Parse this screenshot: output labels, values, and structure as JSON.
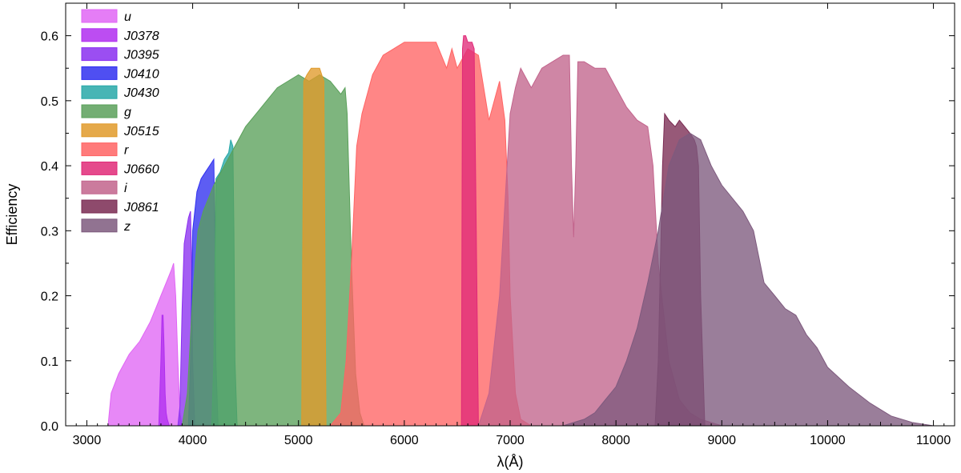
{
  "chart_data": {
    "type": "area",
    "title": "",
    "xlabel": "λ(Å)",
    "ylabel": "Efficiency",
    "xlim": [
      2800,
      11200
    ],
    "ylim": [
      0,
      0.65
    ],
    "xticks": [
      3000,
      4000,
      5000,
      6000,
      7000,
      8000,
      9000,
      10000,
      11000
    ],
    "xtick_labels": [
      "3000",
      "4000",
      "5000",
      "6000",
      "7000",
      "8000",
      "9000",
      "10000",
      "11000"
    ],
    "yticks": [
      0.0,
      0.1,
      0.2,
      0.3,
      0.4,
      0.5,
      0.6
    ],
    "ytick_labels": [
      "0.0",
      "0.1",
      "0.2",
      "0.3",
      "0.4",
      "0.5",
      "0.6"
    ],
    "grid": false,
    "legend_position": "top-left",
    "series": [
      {
        "name": "u",
        "color": "#e066f5",
        "x": [
          3200,
          3230,
          3300,
          3400,
          3500,
          3600,
          3650,
          3700,
          3750,
          3800,
          3820,
          3840,
          3860,
          3880,
          3900
        ],
        "y": [
          0.0,
          0.05,
          0.08,
          0.11,
          0.13,
          0.16,
          0.18,
          0.2,
          0.22,
          0.24,
          0.25,
          0.2,
          0.1,
          0.02,
          0.0
        ]
      },
      {
        "name": "J0378",
        "color": "#b02ef0",
        "x": [
          3680,
          3700,
          3710,
          3720,
          3730,
          3740,
          3750,
          3760,
          3780,
          3800
        ],
        "y": [
          0.0,
          0.1,
          0.17,
          0.17,
          0.12,
          0.05,
          0.02,
          0.01,
          0.0,
          0.0
        ]
      },
      {
        "name": "J0395",
        "color": "#8a2ff0",
        "x": [
          3860,
          3880,
          3900,
          3920,
          3940,
          3960,
          3980,
          3990,
          4000,
          4020
        ],
        "y": [
          0.0,
          0.03,
          0.18,
          0.28,
          0.3,
          0.32,
          0.33,
          0.25,
          0.1,
          0.0
        ]
      },
      {
        "name": "J0410",
        "color": "#3030f0",
        "x": [
          3960,
          3980,
          4000,
          4040,
          4080,
          4120,
          4160,
          4200,
          4210,
          4220,
          4240
        ],
        "y": [
          0.0,
          0.1,
          0.3,
          0.36,
          0.38,
          0.39,
          0.4,
          0.41,
          0.3,
          0.1,
          0.0
        ]
      },
      {
        "name": "J0430",
        "color": "#27a8a8",
        "x": [
          4180,
          4200,
          4220,
          4260,
          4300,
          4340,
          4360,
          4380,
          4390,
          4400,
          4420
        ],
        "y": [
          0.0,
          0.1,
          0.38,
          0.39,
          0.41,
          0.42,
          0.44,
          0.43,
          0.3,
          0.1,
          0.0
        ]
      },
      {
        "name": "g",
        "color": "#5aa05a",
        "x": [
          3900,
          3950,
          4000,
          4050,
          4100,
          4200,
          4300,
          4400,
          4500,
          4600,
          4700,
          4800,
          4900,
          5000,
          5100,
          5200,
          5300,
          5400,
          5440,
          5460,
          5500,
          5540,
          5580,
          5620
        ],
        "y": [
          0.0,
          0.05,
          0.2,
          0.3,
          0.33,
          0.37,
          0.4,
          0.43,
          0.46,
          0.48,
          0.5,
          0.52,
          0.53,
          0.54,
          0.53,
          0.54,
          0.53,
          0.51,
          0.52,
          0.48,
          0.25,
          0.08,
          0.02,
          0.0
        ]
      },
      {
        "name": "J0515",
        "color": "#e09a2a",
        "x": [
          5030,
          5050,
          5080,
          5120,
          5160,
          5200,
          5240,
          5260
        ],
        "y": [
          0.0,
          0.53,
          0.54,
          0.55,
          0.55,
          0.55,
          0.53,
          0.0
        ]
      },
      {
        "name": "r",
        "color": "#ff6464",
        "x": [
          5300,
          5400,
          5450,
          5500,
          5550,
          5600,
          5700,
          5800,
          5900,
          6000,
          6100,
          6200,
          6300,
          6400,
          6450,
          6500,
          6600,
          6700,
          6800,
          6850,
          6900,
          6950,
          6980,
          7000,
          7050,
          7100,
          7200
        ],
        "y": [
          0.0,
          0.02,
          0.1,
          0.25,
          0.43,
          0.48,
          0.54,
          0.57,
          0.58,
          0.59,
          0.59,
          0.59,
          0.59,
          0.55,
          0.58,
          0.55,
          0.58,
          0.57,
          0.47,
          0.5,
          0.53,
          0.47,
          0.35,
          0.2,
          0.05,
          0.01,
          0.0
        ]
      },
      {
        "name": "J0660",
        "color": "#e02a78",
        "x": [
          6540,
          6550,
          6560,
          6580,
          6600,
          6620,
          6640,
          6660,
          6680,
          6700
        ],
        "y": [
          0.0,
          0.58,
          0.6,
          0.6,
          0.59,
          0.59,
          0.59,
          0.58,
          0.3,
          0.0
        ]
      },
      {
        "name": "i",
        "color": "#c2648c",
        "x": [
          6700,
          6800,
          6900,
          7000,
          7050,
          7100,
          7200,
          7300,
          7400,
          7500,
          7560,
          7580,
          7600,
          7620,
          7640,
          7700,
          7800,
          7900,
          8000,
          8100,
          8200,
          8300,
          8350,
          8400,
          8500,
          8600,
          8700,
          8800,
          8900,
          9000
        ],
        "y": [
          0.0,
          0.05,
          0.2,
          0.48,
          0.52,
          0.55,
          0.52,
          0.55,
          0.56,
          0.57,
          0.57,
          0.4,
          0.29,
          0.4,
          0.56,
          0.56,
          0.55,
          0.55,
          0.52,
          0.49,
          0.47,
          0.46,
          0.4,
          0.25,
          0.1,
          0.04,
          0.02,
          0.01,
          0.005,
          0.0
        ]
      },
      {
        "name": "J0861",
        "color": "#7a2a52",
        "x": [
          8370,
          8400,
          8440,
          8460,
          8500,
          8560,
          8600,
          8650,
          8700,
          8740,
          8760,
          8780,
          8800,
          8840
        ],
        "y": [
          0.0,
          0.1,
          0.4,
          0.48,
          0.47,
          0.46,
          0.47,
          0.46,
          0.45,
          0.44,
          0.43,
          0.4,
          0.2,
          0.0
        ]
      },
      {
        "name": "z",
        "color": "#7e5a7e",
        "x": [
          7500,
          7600,
          7700,
          7800,
          7900,
          8000,
          8100,
          8200,
          8300,
          8400,
          8500,
          8600,
          8700,
          8800,
          8900,
          9000,
          9100,
          9200,
          9300,
          9400,
          9500,
          9600,
          9700,
          9800,
          9900,
          10000,
          10200,
          10400,
          10600,
          10800,
          11000
        ],
        "y": [
          0.0,
          0.005,
          0.01,
          0.02,
          0.04,
          0.06,
          0.1,
          0.15,
          0.22,
          0.3,
          0.4,
          0.44,
          0.45,
          0.44,
          0.4,
          0.37,
          0.35,
          0.33,
          0.3,
          0.22,
          0.2,
          0.18,
          0.17,
          0.14,
          0.12,
          0.09,
          0.06,
          0.035,
          0.015,
          0.005,
          0.0
        ]
      }
    ]
  }
}
